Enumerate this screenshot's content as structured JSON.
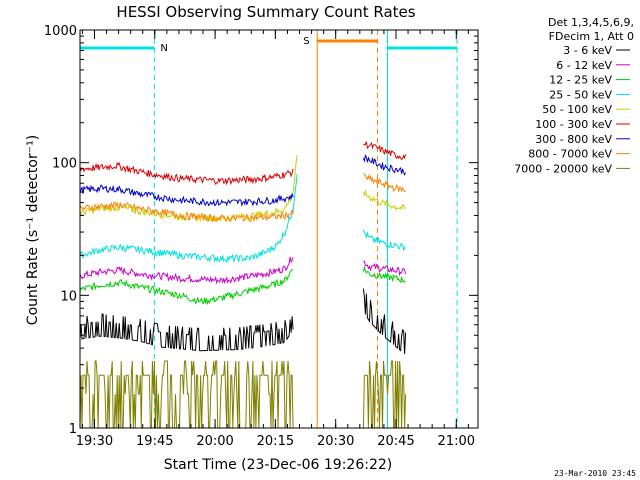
{
  "chart_data": {
    "type": "line",
    "title": "HESSI Observing Summary Count Rates",
    "xlabel": "Start Time (23-Dec-06 19:26:22)",
    "ylabel": "Count Rate (s⁻¹ detector⁻¹)",
    "ylim": [
      1,
      1000
    ],
    "yscale": "log",
    "xlim_minutes": [
      0,
      99
    ],
    "x_ticks": [
      {
        "label": "19:30",
        "t": 3.6
      },
      {
        "label": "19:45",
        "t": 18.6
      },
      {
        "label": "20:00",
        "t": 33.6
      },
      {
        "label": "20:15",
        "t": 48.6
      },
      {
        "label": "20:30",
        "t": 63.6
      },
      {
        "label": "20:45",
        "t": 78.6
      },
      {
        "label": "21:00",
        "t": 93.6
      }
    ],
    "y_ticks": [
      {
        "label": "1",
        "v": 1
      },
      {
        "label": "10",
        "v": 10
      },
      {
        "label": "100",
        "v": 100
      },
      {
        "label": "1000",
        "v": 1000
      }
    ],
    "legend": {
      "header": [
        "Det 1,3,4,5,6,9,",
        "FDecim 1, Att 0"
      ],
      "placement": "right"
    },
    "series": [
      {
        "name": "3 - 6 keV",
        "color": "#000000",
        "seg1": [
          [
            0,
            5.5
          ],
          [
            5,
            5.8
          ],
          [
            10,
            5.6
          ],
          [
            15,
            5.3
          ],
          [
            20,
            4.8
          ],
          [
            30,
            4.5
          ],
          [
            40,
            4.6
          ],
          [
            47,
            4.9
          ],
          [
            51,
            5.2
          ],
          [
            53,
            6.5
          ]
        ],
        "seg2": [
          [
            70.5,
            9
          ],
          [
            72,
            7.5
          ],
          [
            75,
            6
          ],
          [
            78,
            5
          ],
          [
            81,
            4.2
          ]
        ]
      },
      {
        "name": "6 - 12 keV",
        "color": "#cc00cc",
        "seg1": [
          [
            0,
            14
          ],
          [
            5,
            15
          ],
          [
            10,
            15.5
          ],
          [
            15,
            14.5
          ],
          [
            25,
            13.5
          ],
          [
            35,
            13
          ],
          [
            43,
            14
          ],
          [
            48,
            15
          ],
          [
            51,
            16
          ],
          [
            53,
            20
          ]
        ],
        "seg2": [
          [
            70.5,
            18
          ],
          [
            72,
            16.5
          ],
          [
            75,
            16
          ],
          [
            78,
            15.5
          ],
          [
            81,
            15
          ]
        ]
      },
      {
        "name": "12 - 25 keV",
        "color": "#00cc00",
        "seg1": [
          [
            0,
            11
          ],
          [
            5,
            12
          ],
          [
            10,
            12.5
          ],
          [
            15,
            11.5
          ],
          [
            25,
            10
          ],
          [
            30,
            9
          ],
          [
            35,
            9.5
          ],
          [
            43,
            11
          ],
          [
            48,
            12
          ],
          [
            51,
            13
          ],
          [
            53,
            16
          ]
        ],
        "seg2": [
          [
            70.5,
            16
          ],
          [
            72,
            14.5
          ],
          [
            75,
            14
          ],
          [
            78,
            13.5
          ],
          [
            81,
            13
          ]
        ]
      },
      {
        "name": "25 - 50 keV",
        "color": "#00e0e0",
        "seg1": [
          [
            0,
            20
          ],
          [
            5,
            22
          ],
          [
            10,
            23
          ],
          [
            15,
            22
          ],
          [
            25,
            20
          ],
          [
            35,
            19
          ],
          [
            42,
            19
          ],
          [
            46,
            21
          ],
          [
            49,
            24
          ],
          [
            51,
            30
          ],
          [
            53,
            45
          ],
          [
            54,
            85
          ]
        ],
        "seg2": [
          [
            70.5,
            30
          ],
          [
            72,
            27
          ],
          [
            75,
            25
          ],
          [
            78,
            24
          ],
          [
            81,
            23
          ]
        ]
      },
      {
        "name": "50 - 100 keV",
        "color": "#cccc00",
        "seg1": [
          [
            0,
            42
          ],
          [
            5,
            45
          ],
          [
            10,
            46
          ],
          [
            15,
            43
          ],
          [
            25,
            39
          ],
          [
            35,
            38
          ],
          [
            43,
            40
          ],
          [
            48,
            42
          ],
          [
            51,
            45
          ],
          [
            53,
            60
          ],
          [
            54,
            110
          ]
        ],
        "seg2": [
          [
            70.5,
            60
          ],
          [
            72,
            55
          ],
          [
            75,
            50
          ],
          [
            78,
            47
          ],
          [
            81,
            45
          ]
        ]
      },
      {
        "name": "100 - 300 keV",
        "color": "#dd0000",
        "seg1": [
          [
            0,
            90
          ],
          [
            5,
            92
          ],
          [
            9,
            95
          ],
          [
            12,
            90
          ],
          [
            18,
            82
          ],
          [
            25,
            76
          ],
          [
            35,
            73
          ],
          [
            43,
            75
          ],
          [
            48,
            78
          ],
          [
            51,
            82
          ],
          [
            53,
            85
          ]
        ],
        "seg2": [
          [
            70.5,
            140
          ],
          [
            72,
            135
          ],
          [
            75,
            125
          ],
          [
            78,
            115
          ],
          [
            81,
            110
          ]
        ]
      },
      {
        "name": "300 - 800 keV",
        "color": "#0000cc",
        "seg1": [
          [
            0,
            62
          ],
          [
            5,
            64
          ],
          [
            10,
            63
          ],
          [
            15,
            58
          ],
          [
            25,
            52
          ],
          [
            35,
            50
          ],
          [
            43,
            51
          ],
          [
            48,
            52
          ],
          [
            51,
            54
          ],
          [
            53,
            56
          ]
        ],
        "seg2": [
          [
            70.5,
            110
          ],
          [
            72,
            105
          ],
          [
            75,
            95
          ],
          [
            78,
            90
          ],
          [
            81,
            86
          ]
        ]
      },
      {
        "name": "800 - 7000 keV",
        "color": "#ff8000",
        "seg1": [
          [
            0,
            45
          ],
          [
            5,
            47
          ],
          [
            10,
            48
          ],
          [
            15,
            45
          ],
          [
            25,
            40
          ],
          [
            35,
            38
          ],
          [
            43,
            38.5
          ],
          [
            48,
            39
          ],
          [
            51,
            40
          ],
          [
            53,
            42
          ]
        ],
        "seg2": [
          [
            70.5,
            80
          ],
          [
            72,
            75
          ],
          [
            75,
            70
          ],
          [
            78,
            65
          ],
          [
            81,
            62
          ]
        ]
      },
      {
        "name": "7000 - 20000 keV",
        "color": "#808000",
        "seg1": [
          [
            0,
            2.5
          ],
          [
            53,
            2.5
          ]
        ],
        "seg2": [
          [
            70.5,
            2.5
          ],
          [
            81,
            2.5
          ]
        ]
      }
    ],
    "annotations": [
      {
        "label": "N",
        "color": "#00cccc"
      },
      {
        "label": "S",
        "color": "#ff8000"
      }
    ],
    "footer": "23-Mar-2010 23:45"
  }
}
